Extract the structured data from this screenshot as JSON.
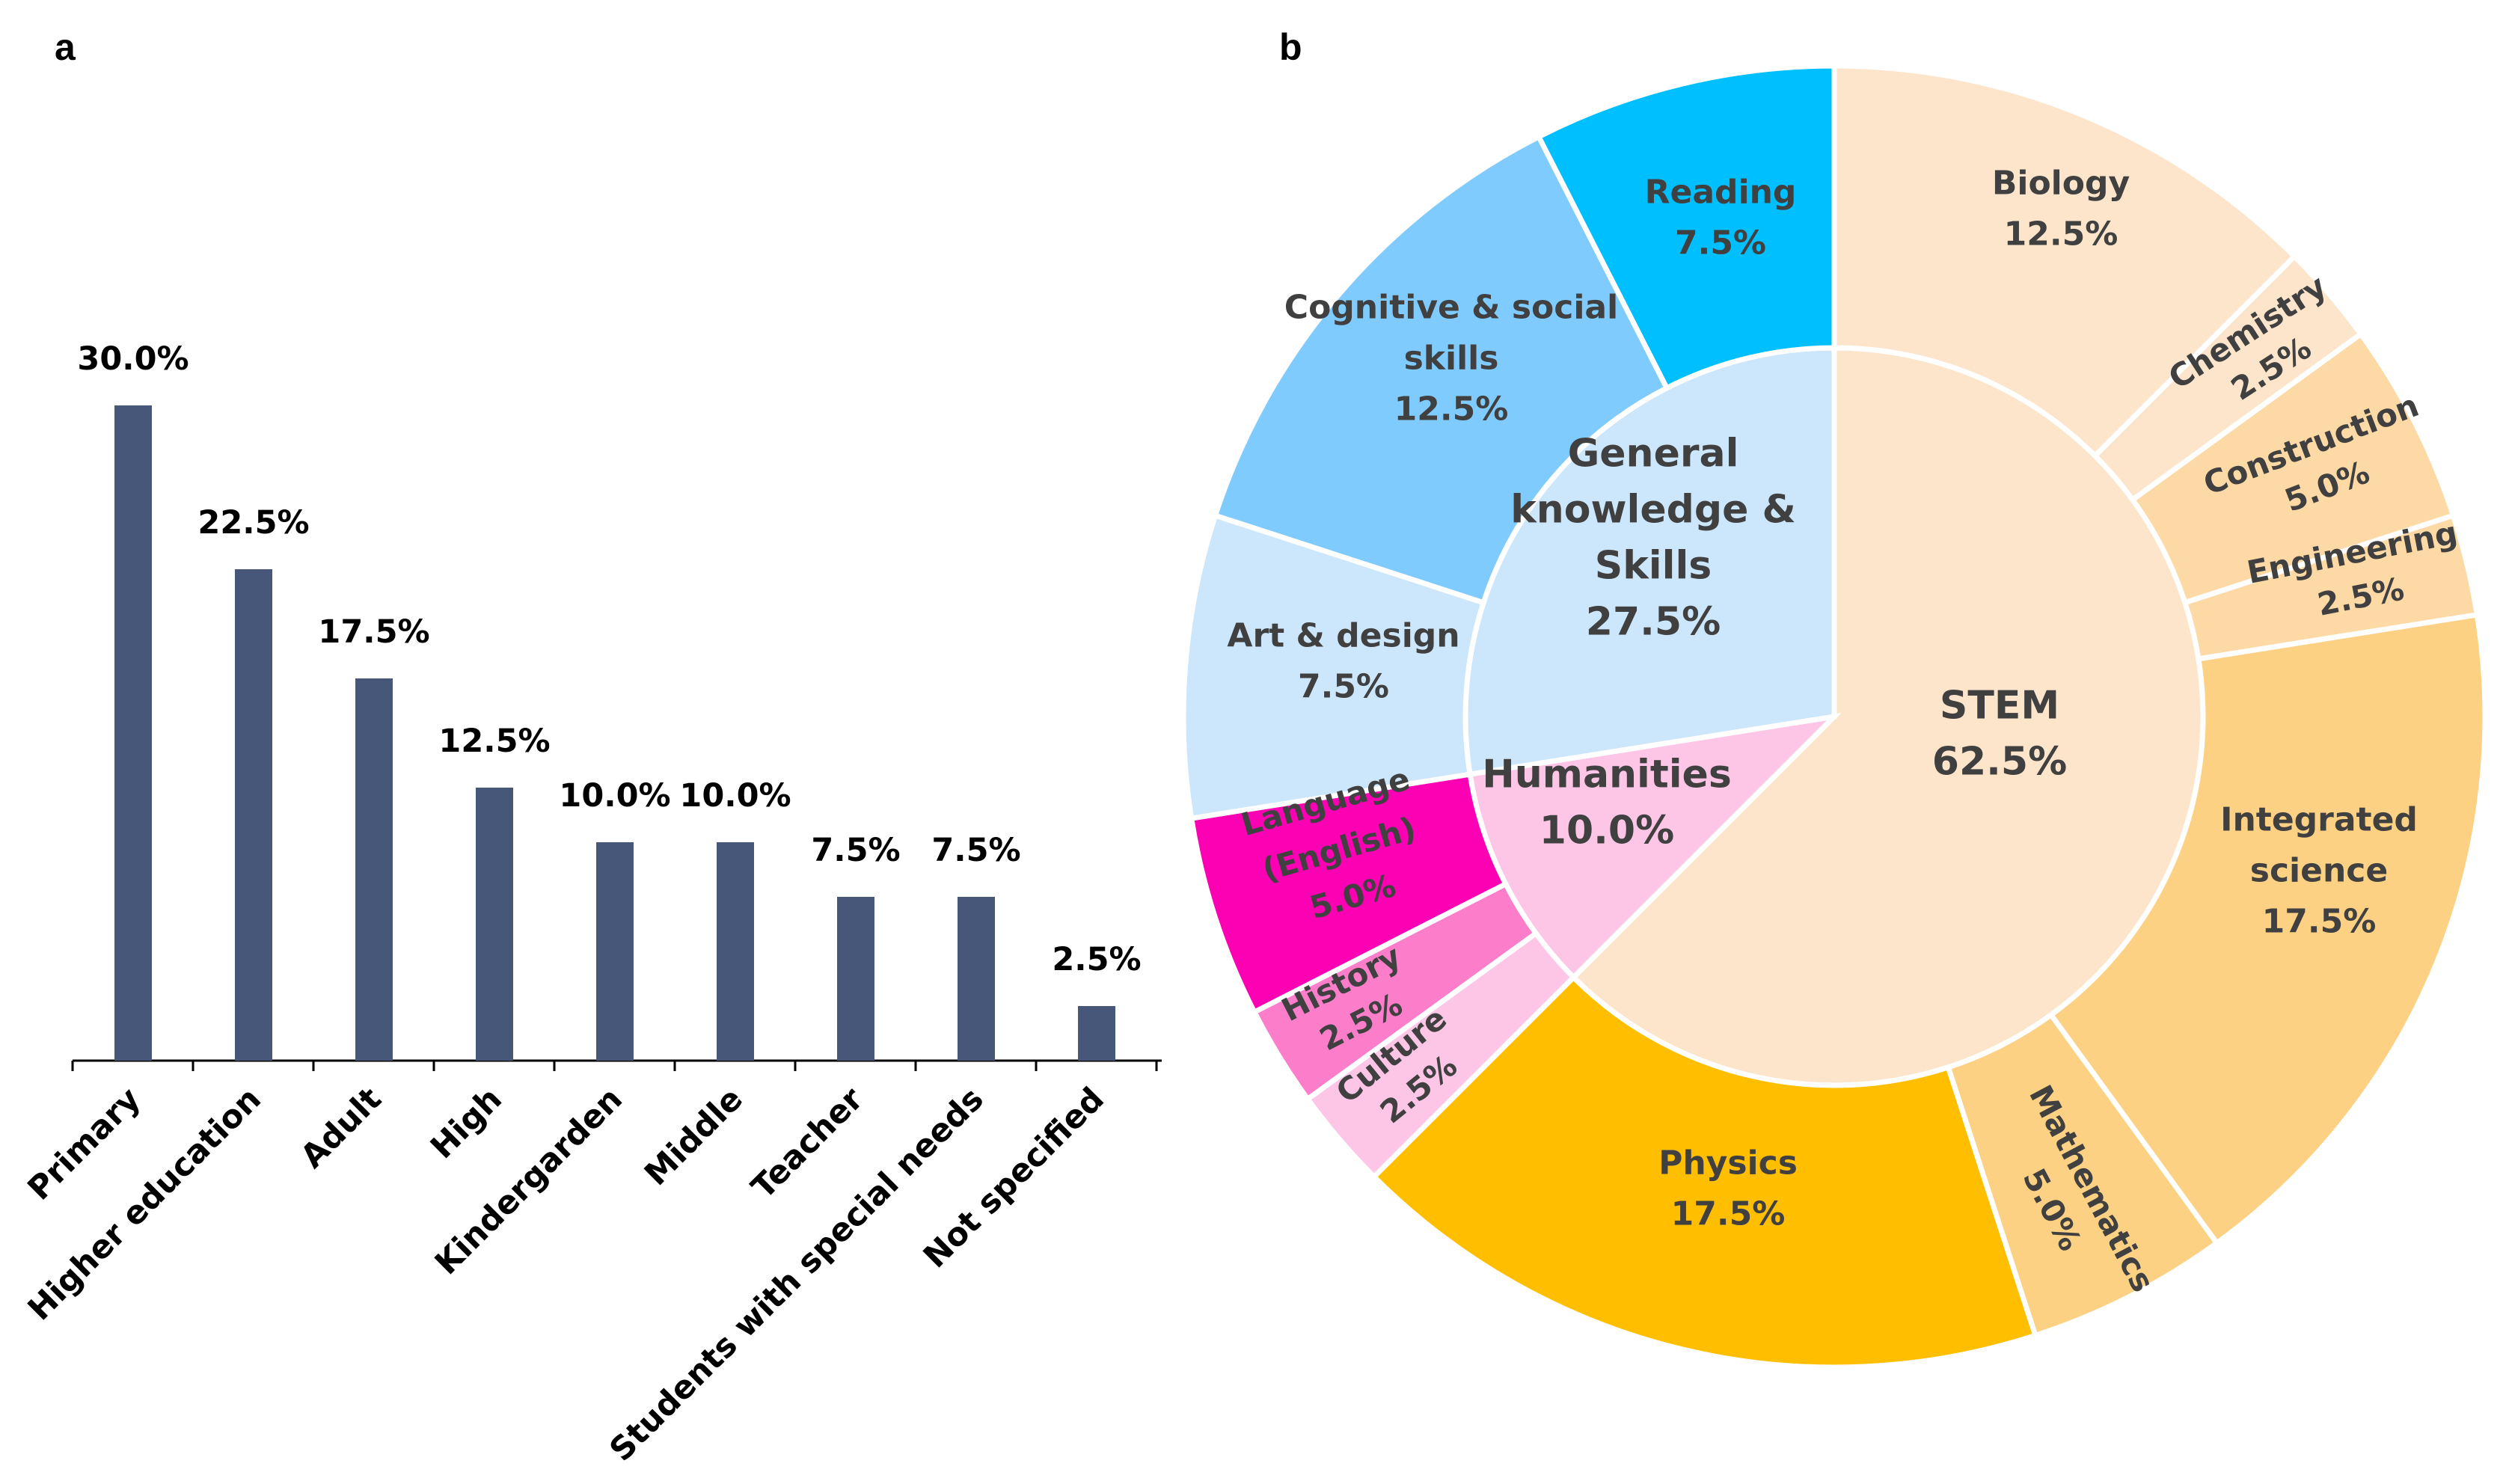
{
  "chart_data": [
    {
      "panel": "a",
      "type": "bar",
      "categories": [
        "Primary",
        "Higher education",
        "Adult",
        "High",
        "Kindergarden",
        "Middle",
        "Teacher",
        "Students with special needs",
        "Not specified"
      ],
      "values": [
        30.0,
        22.5,
        17.5,
        12.5,
        10.0,
        10.0,
        7.5,
        7.5,
        2.5
      ],
      "value_labels": [
        "30.0%",
        "22.5%",
        "17.5%",
        "12.5%",
        "10.0%",
        "10.0%",
        "7.5%",
        "7.5%",
        "2.5%"
      ],
      "ylim": [
        0,
        30
      ],
      "grid": false,
      "bar_color": "#475779",
      "xlabel": "",
      "ylabel": ""
    },
    {
      "panel": "b",
      "type": "pie",
      "style": "sunburst",
      "inner": [
        {
          "id": "general",
          "lines": [
            "General",
            "knowledge &",
            "Skills",
            "27.5%"
          ],
          "value": 27.5,
          "color": "#CCE6FB"
        },
        {
          "id": "humanities",
          "lines": [
            "Humanities",
            "10.0%"
          ],
          "value": 10.0,
          "color": "#FDC6E7"
        },
        {
          "id": "stem",
          "lines": [
            "STEM",
            "62.5%"
          ],
          "value": 62.5,
          "color": "#FCE5CB"
        }
      ],
      "outer": [
        {
          "id": "biology",
          "lines": [
            "Biology",
            "12.5%"
          ],
          "value": 12.5,
          "color": "#FCE5CB"
        },
        {
          "id": "chemistry",
          "lines": [
            "Chemistry",
            "2.5%"
          ],
          "value": 2.5,
          "color": "#FCE5CB"
        },
        {
          "id": "construction",
          "lines": [
            "Construction",
            "5.0%"
          ],
          "value": 5.0,
          "color": "#FDD9A6"
        },
        {
          "id": "engineering",
          "lines": [
            "Engineering",
            "2.5%"
          ],
          "value": 2.5,
          "color": "#FDD9A6"
        },
        {
          "id": "integrated-science",
          "lines": [
            "Integrated",
            "science",
            "17.5%"
          ],
          "value": 17.5,
          "color": "#FDD184"
        },
        {
          "id": "mathematics",
          "lines": [
            "Mathematics",
            "5.0%"
          ],
          "value": 5.0,
          "color": "#FDD184"
        },
        {
          "id": "physics",
          "lines": [
            "Physics",
            "17.5%"
          ],
          "value": 17.5,
          "color": "#FFBF00"
        },
        {
          "id": "culture",
          "lines": [
            "Culture",
            "2.5%"
          ],
          "value": 2.5,
          "color": "#FDC6E7"
        },
        {
          "id": "history",
          "lines": [
            "History",
            "2.5%"
          ],
          "value": 2.5,
          "color": "#FC7ECB"
        },
        {
          "id": "language",
          "lines": [
            "Language",
            "(English)",
            "5.0%"
          ],
          "value": 5.0,
          "color": "#FC00B4"
        },
        {
          "id": "art-design",
          "lines": [
            "Art & design",
            "7.5%"
          ],
          "value": 7.5,
          "color": "#CCE6FB"
        },
        {
          "id": "cognitive-social",
          "lines": [
            "Cognitive & social",
            "skills",
            "12.5%"
          ],
          "value": 12.5,
          "color": "#80CBFD"
        },
        {
          "id": "reading",
          "lines": [
            "Reading",
            "7.5%"
          ],
          "value": 7.5,
          "color": "#00BFFF"
        }
      ]
    }
  ],
  "panels": {
    "a": "a",
    "b": "b"
  }
}
